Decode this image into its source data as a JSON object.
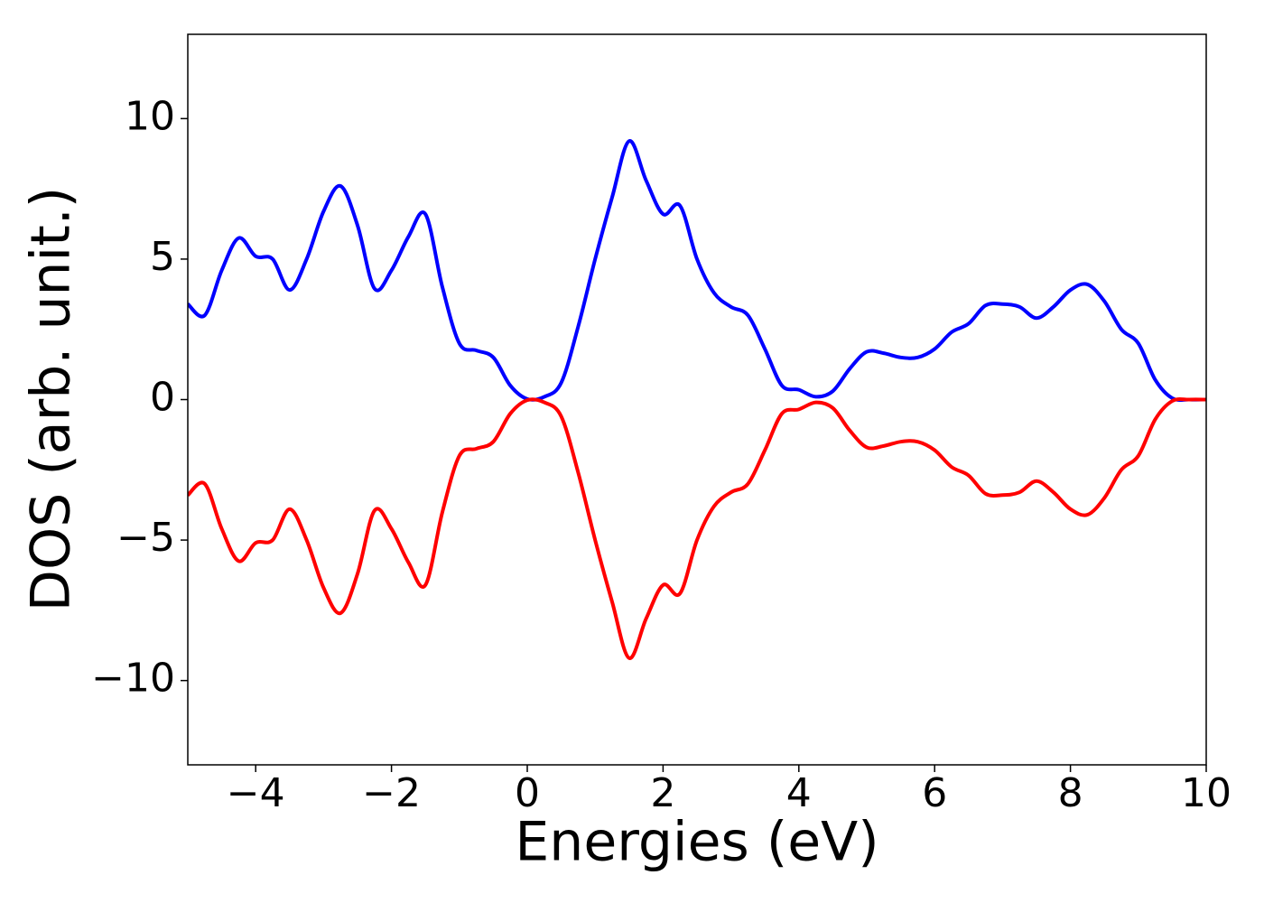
{
  "chart_data": {
    "type": "line",
    "xlabel": "Energies (eV)",
    "ylabel": "DOS (arb. unit.)",
    "x": [
      -5,
      -4.75,
      -4.5,
      -4.25,
      -4,
      -3.75,
      -3.5,
      -3.25,
      -3,
      -2.75,
      -2.5,
      -2.25,
      -2,
      -1.75,
      -1.5,
      -1.25,
      -1,
      -0.75,
      -0.5,
      -0.25,
      0,
      0.25,
      0.5,
      0.75,
      1,
      1.25,
      1.5,
      1.75,
      2,
      2.25,
      2.5,
      2.75,
      3,
      3.25,
      3.5,
      3.75,
      4,
      4.25,
      4.5,
      4.75,
      5,
      5.25,
      5.5,
      5.75,
      6,
      6.25,
      6.5,
      6.75,
      7,
      7.25,
      7.5,
      7.75,
      8,
      8.25,
      8.5,
      8.75,
      9,
      9.25,
      9.5,
      9.75,
      10
    ],
    "series": [
      {
        "color": "#0000ff",
        "values": [
          3.4,
          3.0,
          4.6,
          5.75,
          5.1,
          5.0,
          3.9,
          5.0,
          6.7,
          7.6,
          6.2,
          3.95,
          4.6,
          5.8,
          6.6,
          4.0,
          2.0,
          1.75,
          1.5,
          0.5,
          0.02,
          0.1,
          0.6,
          2.6,
          5.0,
          7.2,
          9.2,
          7.8,
          6.6,
          6.9,
          5.0,
          3.8,
          3.3,
          3.0,
          1.8,
          0.5,
          0.35,
          0.1,
          0.3,
          1.1,
          1.7,
          1.65,
          1.5,
          1.5,
          1.8,
          2.4,
          2.7,
          3.35,
          3.4,
          3.3,
          2.9,
          3.3,
          3.9,
          4.1,
          3.5,
          2.5,
          2.0,
          0.7,
          0.05,
          0.0,
          0.0
        ]
      },
      {
        "color": "#ff0000",
        "values": [
          -3.4,
          -3.0,
          -4.6,
          -5.75,
          -5.1,
          -5.0,
          -3.9,
          -5.0,
          -6.7,
          -7.6,
          -6.2,
          -3.95,
          -4.6,
          -5.8,
          -6.6,
          -4.0,
          -2.0,
          -1.75,
          -1.5,
          -0.5,
          -0.02,
          -0.1,
          -0.6,
          -2.6,
          -5.0,
          -7.2,
          -9.2,
          -7.8,
          -6.6,
          -6.9,
          -5.0,
          -3.8,
          -3.3,
          -3.0,
          -1.8,
          -0.5,
          -0.35,
          -0.1,
          -0.3,
          -1.1,
          -1.7,
          -1.65,
          -1.5,
          -1.5,
          -1.8,
          -2.4,
          -2.7,
          -3.35,
          -3.4,
          -3.3,
          -2.9,
          -3.3,
          -3.9,
          -4.1,
          -3.5,
          -2.5,
          -2.0,
          -0.7,
          -0.05,
          0.0,
          0.0
        ]
      }
    ],
    "xlim": [
      -5,
      10
    ],
    "ylim": [
      -13,
      13
    ],
    "xticks": [
      {
        "value": -4,
        "label": "−4"
      },
      {
        "value": -2,
        "label": "−2"
      },
      0,
      2,
      4,
      6,
      8,
      10
    ],
    "yticks": [
      {
        "value": -10,
        "label": "−10"
      },
      {
        "value": -5,
        "label": "−5"
      },
      0,
      5,
      10
    ],
    "grid": false
  }
}
